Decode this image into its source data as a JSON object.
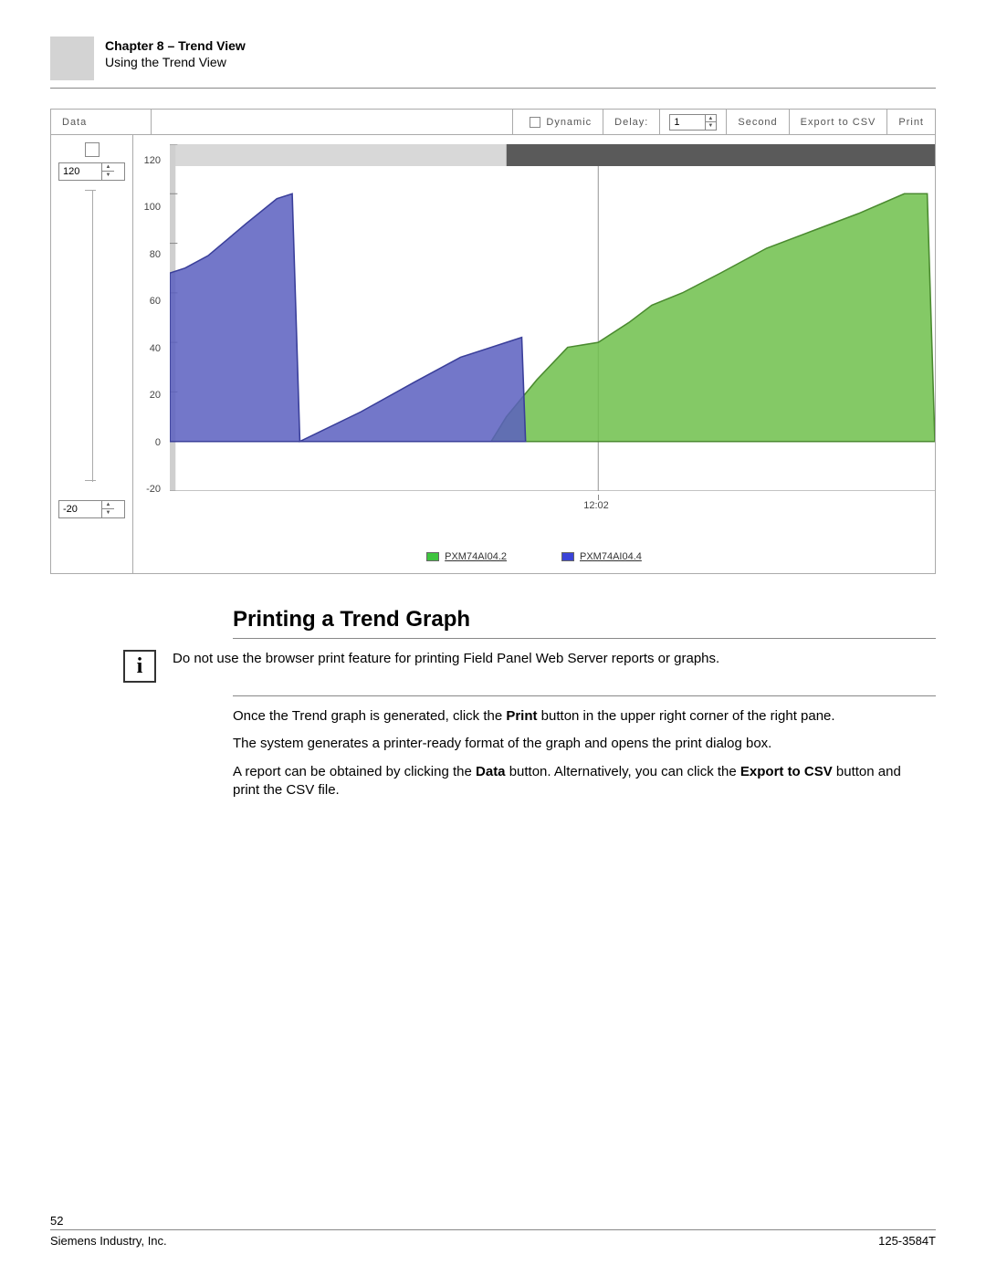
{
  "header": {
    "chapter": "Chapter 8 – Trend View",
    "subtitle": "Using the Trend View"
  },
  "toolbar": {
    "data_btn": "Data",
    "dynamic_label": "Dynamic",
    "delay_label": "Delay:",
    "delay_value": "1",
    "unit": "Second",
    "export_btn": "Export to CSV",
    "print_btn": "Print"
  },
  "ycontrol": {
    "top_value": "120",
    "bottom_value": "-20"
  },
  "chart": {
    "type": "area",
    "ylim": [
      -20,
      120
    ],
    "yticks": [
      -20,
      0,
      20,
      40,
      60,
      80,
      100,
      120
    ],
    "xlabel": "12:02",
    "background_color": "#ffffff",
    "axis_color": "#888888",
    "series": [
      {
        "name": "PXM74AI04.2",
        "color": "#6fbf4b",
        "stroke": "#4a8a2f",
        "points": [
          [
            0.42,
            0
          ],
          [
            0.44,
            10
          ],
          [
            0.48,
            25
          ],
          [
            0.52,
            38
          ],
          [
            0.56,
            40
          ],
          [
            0.6,
            48
          ],
          [
            0.63,
            55
          ],
          [
            0.67,
            60
          ],
          [
            0.72,
            68
          ],
          [
            0.78,
            78
          ],
          [
            0.84,
            85
          ],
          [
            0.9,
            92
          ],
          [
            0.96,
            100
          ],
          [
            0.99,
            100
          ],
          [
            1.0,
            0
          ]
        ]
      },
      {
        "name": "PXM74AI04.4",
        "color": "#5a5fbf",
        "stroke": "#3a3f9a",
        "points": [
          [
            0,
            68
          ],
          [
            0.02,
            70
          ],
          [
            0.05,
            75
          ],
          [
            0.1,
            88
          ],
          [
            0.14,
            98
          ],
          [
            0.16,
            100
          ],
          [
            0.17,
            0
          ],
          [
            0.25,
            12
          ],
          [
            0.32,
            24
          ],
          [
            0.38,
            34
          ],
          [
            0.44,
            40
          ],
          [
            0.46,
            42
          ],
          [
            0.465,
            0
          ]
        ]
      }
    ],
    "overview_bar_color": "#5a5a5a",
    "legend": [
      {
        "label": "PXM74AI04.2",
        "color": "#3fc43f"
      },
      {
        "label": "PXM74AI04.4",
        "color": "#3a43d8"
      }
    ]
  },
  "section": {
    "title": "Printing a Trend Graph",
    "note": "Do not use the browser print feature for printing Field Panel Web Server reports or graphs.",
    "p1_a": "Once the Trend graph is generated, click the ",
    "p1_bold": "Print",
    "p1_b": " button in the upper right corner of the right pane.",
    "p2": "The system generates a printer-ready format of the graph and opens the print dialog box.",
    "p3_a": "A report can be obtained by clicking the ",
    "p3_bold1": "Data",
    "p3_b": " button. Alternatively, you can click the ",
    "p3_bold2": "Export to CSV",
    "p3_c": " button and print the CSV file."
  },
  "footer": {
    "page": "52",
    "company": "Siemens Industry, Inc.",
    "docnum": "125-3584T"
  }
}
